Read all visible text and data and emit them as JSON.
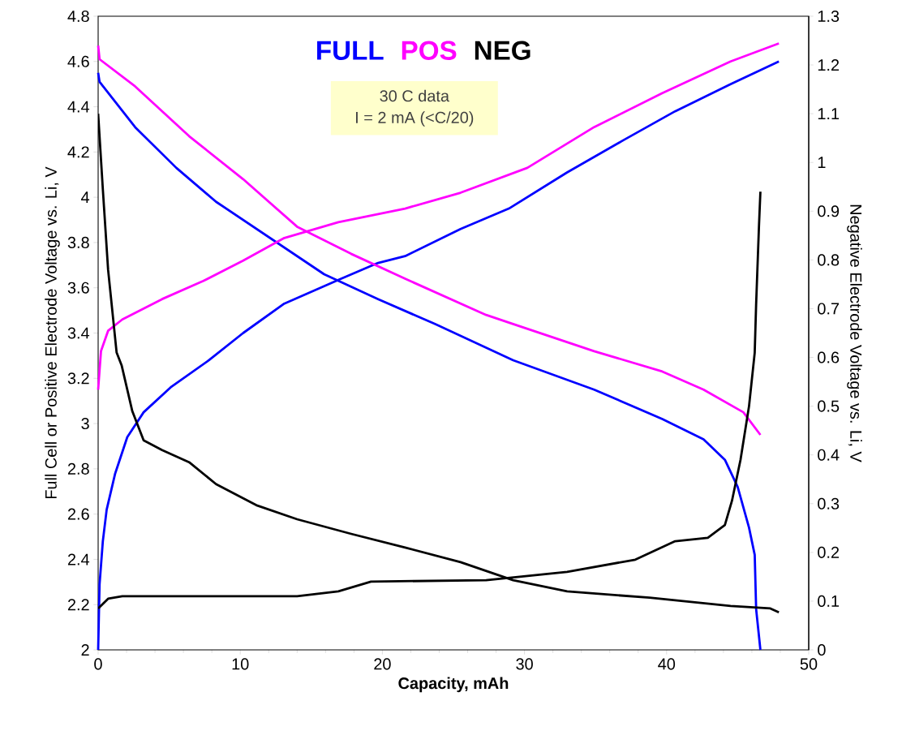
{
  "chart_data": {
    "type": "line",
    "xlabel": "Capacity, mAh",
    "ylabel": "Full Cell or Positive Electrode Voltage vs. Li, V",
    "y2label": "Negative Electrode Voltage vs. Li, V",
    "annotations": [
      "30  C data",
      "I = 2 mA (<C/20)"
    ],
    "legend": "top",
    "marker": "none",
    "line_style": "solid",
    "grid": false,
    "xlim": [
      0,
      50
    ],
    "xticks": [
      0,
      10,
      20,
      30,
      40,
      50
    ],
    "ylim": [
      2,
      4.8
    ],
    "yticks": [
      2,
      2.2,
      2.4,
      2.6,
      2.8,
      3,
      3.2,
      3.4,
      3.6,
      3.8,
      4,
      4.2,
      4.4,
      4.6,
      4.8
    ],
    "y2lim": [
      0,
      1.3
    ],
    "y2ticks": [
      0,
      0.1,
      0.2,
      0.3,
      0.4,
      0.5,
      0.6,
      0.7,
      0.8,
      0.9,
      1,
      1.1,
      1.2,
      1.3
    ],
    "series": [
      {
        "name": "FULL",
        "color": "#0000ff",
        "x": [
          0,
          0.1,
          0.33,
          0.6,
          1.2,
          2.05,
          3.2,
          5.1,
          7.8,
          10.2,
          13.1,
          17.1,
          19.7,
          21.6,
          25.5,
          28.9,
          33.0,
          36.9,
          40.6,
          44.5,
          47.9
        ],
        "values": [
          2.0,
          2.29,
          2.48,
          2.62,
          2.78,
          2.94,
          3.05,
          3.16,
          3.28,
          3.4,
          3.53,
          3.64,
          3.71,
          3.74,
          3.86,
          3.95,
          4.11,
          4.25,
          4.38,
          4.5,
          4.6
        ]
      },
      {
        "color": "#0000ff",
        "x": [
          0,
          0.1,
          2.6,
          5.5,
          8.3,
          12.1,
          15.9,
          19.7,
          23.7,
          29.2,
          34.9,
          39.7,
          42.6,
          44.1,
          45.0,
          45.8,
          46.2,
          46.3,
          46.6
        ],
        "values": [
          4.55,
          4.51,
          4.31,
          4.13,
          3.98,
          3.82,
          3.66,
          3.55,
          3.44,
          3.28,
          3.15,
          3.02,
          2.93,
          2.84,
          2.72,
          2.54,
          2.42,
          2.18,
          2.0
        ]
      },
      {
        "name": "POS",
        "color": "#ff00ff",
        "x": [
          0,
          0.2,
          0.7,
          1.7,
          4.5,
          7.4,
          10.2,
          13.1,
          16.9,
          21.6,
          25.5,
          30.2,
          34.9,
          39.7,
          44.5,
          47.9
        ],
        "values": [
          3.15,
          3.32,
          3.41,
          3.46,
          3.55,
          3.63,
          3.72,
          3.82,
          3.89,
          3.95,
          4.02,
          4.13,
          4.31,
          4.46,
          4.6,
          4.68
        ]
      },
      {
        "color": "#ff00ff",
        "x": [
          0,
          0.1,
          2.6,
          6.4,
          10.2,
          14.0,
          17.8,
          21.6,
          27.3,
          29.2,
          34.9,
          39.7,
          42.6,
          45.4,
          46.6
        ],
        "values": [
          4.67,
          4.61,
          4.49,
          4.27,
          4.08,
          3.87,
          3.75,
          3.64,
          3.48,
          3.44,
          3.32,
          3.23,
          3.15,
          3.05,
          2.95
        ]
      },
      {
        "name": "NEG",
        "color": "#000000",
        "axis": "y2",
        "x": [
          0,
          0.33,
          0.7,
          1.3,
          1.65,
          2.4,
          3.2,
          4.5,
          6.4,
          8.3,
          11.2,
          14.0,
          17.8,
          21.6,
          25.5,
          29.2,
          33.0,
          38.8,
          44.5,
          47.3,
          47.9
        ],
        "values": [
          1.1,
          0.945,
          0.78,
          0.61,
          0.584,
          0.49,
          0.43,
          0.41,
          0.385,
          0.34,
          0.296,
          0.268,
          0.238,
          0.21,
          0.18,
          0.143,
          0.12,
          0.107,
          0.09,
          0.085,
          0.077
        ]
      },
      {
        "color": "#000000",
        "axis": "y2",
        "x": [
          0,
          0.7,
          1.7,
          14.0,
          16.9,
          19.2,
          27.3,
          33.0,
          37.8,
          40.6,
          42.9,
          44.1,
          44.6,
          45.2,
          45.8,
          46.2,
          46.3,
          46.5,
          46.6
        ],
        "values": [
          0.085,
          0.105,
          0.11,
          0.11,
          0.12,
          0.14,
          0.143,
          0.16,
          0.185,
          0.223,
          0.23,
          0.256,
          0.306,
          0.39,
          0.5,
          0.61,
          0.71,
          0.87,
          0.94
        ]
      }
    ]
  }
}
